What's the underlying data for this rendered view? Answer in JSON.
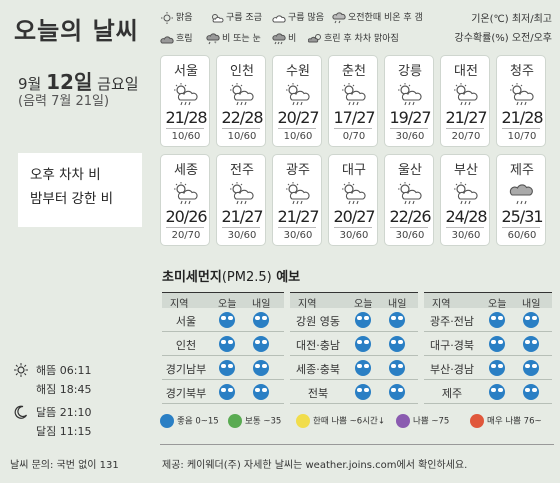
{
  "title": "오늘의 날씨",
  "date": {
    "month": "9월",
    "day": "12일",
    "weekday": "금요일",
    "lunar": "(음력 7월 21일)"
  },
  "summary": [
    "오후 차차 비",
    "밤부터 강한 비"
  ],
  "astro": {
    "sunrise_label": "해뜸",
    "sunrise": "06:11",
    "sunset_label": "해짐",
    "sunset": "18:45",
    "moonrise_label": "달뜸",
    "moonrise": "21:10",
    "moonset_label": "달짐",
    "moonset": "11:15"
  },
  "contact": "날씨 문의: 국번 없이 131",
  "weather_legend": [
    {
      "icon": "sunny-icon",
      "label": "맑음"
    },
    {
      "icon": "partly-cloudy-icon",
      "label": "구름 조금"
    },
    {
      "icon": "mostly-cloudy-icon",
      "label": "구름 많음"
    },
    {
      "icon": "afternoon-shower-icon",
      "label": "오전한때 비온 후 갬"
    },
    {
      "icon": "cloudy-icon",
      "label": "흐림"
    },
    {
      "icon": "rain-snow-icon",
      "label": "비 또는 눈"
    },
    {
      "icon": "rain-icon",
      "label": "비"
    },
    {
      "icon": "cloudy-rain-later-icon",
      "label": "흐린 후 차차 맑아짐"
    }
  ],
  "legend_right": [
    "기온(℃) 최저/최고",
    "강수확률(%) 오전/오후"
  ],
  "cities": [
    {
      "name": "서울",
      "temp": "21/28",
      "rain": "10/60"
    },
    {
      "name": "인천",
      "temp": "22/28",
      "rain": "10/60"
    },
    {
      "name": "수원",
      "temp": "20/27",
      "rain": "10/60"
    },
    {
      "name": "춘천",
      "temp": "17/27",
      "rain": "0/70"
    },
    {
      "name": "강릉",
      "temp": "19/27",
      "rain": "30/60"
    },
    {
      "name": "대전",
      "temp": "21/27",
      "rain": "20/70"
    },
    {
      "name": "청주",
      "temp": "21/28",
      "rain": "10/70"
    },
    {
      "name": "세종",
      "temp": "20/26",
      "rain": "20/70"
    },
    {
      "name": "전주",
      "temp": "21/27",
      "rain": "30/60"
    },
    {
      "name": "광주",
      "temp": "21/27",
      "rain": "30/60"
    },
    {
      "name": "대구",
      "temp": "20/27",
      "rain": "30/60"
    },
    {
      "name": "울산",
      "temp": "22/26",
      "rain": "30/60"
    },
    {
      "name": "부산",
      "temp": "24/28",
      "rain": "30/60"
    },
    {
      "name": "제주",
      "temp": "25/31",
      "rain": "60/60"
    }
  ],
  "pm": {
    "title": "초미세먼지",
    "title_sub": "(PM2.5)",
    "title_suffix": "예보",
    "headers": {
      "region": "지역",
      "today": "오늘",
      "tomorrow": "내일"
    },
    "col1": [
      "서울",
      "인천",
      "경기남부",
      "경기북부"
    ],
    "col2": [
      "강원 영동",
      "대전·충남",
      "세종·충북",
      "전북"
    ],
    "col3": [
      "광주·전남",
      "대구·경북",
      "부산·경남",
      "제주"
    ],
    "status_icon": "good-face-icon"
  },
  "pm_legend": [
    {
      "label": "좋음 0~15",
      "color": "#2a7fc4"
    },
    {
      "label": "보통 ~35",
      "color": "#5aab52"
    },
    {
      "label": "한때 나쁨 ~6시간↓",
      "color": "#f1dd4c"
    },
    {
      "label": "나쁨 ~75",
      "color": "#8a5bb0"
    },
    {
      "label": "매우 나쁨 76~",
      "color": "#e0573b"
    }
  ],
  "source": "제공: 케이웨더(주) 자세한 날씨는 weather.joins.com에서 확인하세요."
}
